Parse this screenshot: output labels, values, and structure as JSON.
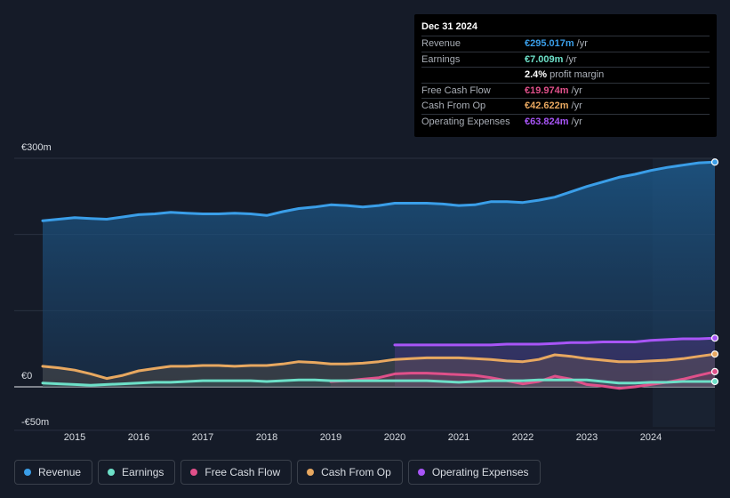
{
  "tooltip": {
    "date": "Dec 31 2024",
    "rows": [
      {
        "label": "Revenue",
        "value": "€295.017m",
        "unit": "/yr",
        "color": "#3a9ee8"
      },
      {
        "label": "Earnings",
        "value": "€7.009m",
        "unit": "/yr",
        "color": "#6de0c8"
      },
      {
        "label": "",
        "value": "2.4%",
        "unit": "profit margin",
        "color": "#ffffff"
      },
      {
        "label": "Free Cash Flow",
        "value": "€19.974m",
        "unit": "/yr",
        "color": "#e0508a"
      },
      {
        "label": "Cash From Op",
        "value": "€42.622m",
        "unit": "/yr",
        "color": "#e8a860"
      },
      {
        "label": "Operating Expenses",
        "value": "€63.824m",
        "unit": "/yr",
        "color": "#a855f7"
      }
    ]
  },
  "legend": [
    {
      "label": "Revenue",
      "color": "#3a9ee8"
    },
    {
      "label": "Earnings",
      "color": "#6de0c8"
    },
    {
      "label": "Free Cash Flow",
      "color": "#e0508a"
    },
    {
      "label": "Cash From Op",
      "color": "#e8a860"
    },
    {
      "label": "Operating Expenses",
      "color": "#a855f7"
    }
  ],
  "chart_data": {
    "type": "area",
    "title": "",
    "xlabel": "",
    "ylabel": "",
    "ylim": [
      -50,
      300
    ],
    "y_tick_labels": [
      "€300m",
      "€0",
      "-€50m"
    ],
    "x_tick_labels": [
      "2015",
      "2016",
      "2017",
      "2018",
      "2019",
      "2020",
      "2021",
      "2022",
      "2023",
      "2024"
    ],
    "x_range": [
      2014.5,
      2025.0
    ],
    "series": [
      {
        "name": "Revenue",
        "color": "#3a9ee8",
        "points": [
          [
            2014.5,
            218
          ],
          [
            2014.75,
            220
          ],
          [
            2015.0,
            222
          ],
          [
            2015.25,
            221
          ],
          [
            2015.5,
            220
          ],
          [
            2015.75,
            223
          ],
          [
            2016.0,
            226
          ],
          [
            2016.25,
            227
          ],
          [
            2016.5,
            229
          ],
          [
            2016.75,
            228
          ],
          [
            2017.0,
            227
          ],
          [
            2017.25,
            227
          ],
          [
            2017.5,
            228
          ],
          [
            2017.75,
            227
          ],
          [
            2018.0,
            225
          ],
          [
            2018.25,
            230
          ],
          [
            2018.5,
            234
          ],
          [
            2018.75,
            236
          ],
          [
            2019.0,
            239
          ],
          [
            2019.25,
            238
          ],
          [
            2019.5,
            236
          ],
          [
            2019.75,
            238
          ],
          [
            2020.0,
            241
          ],
          [
            2020.25,
            241
          ],
          [
            2020.5,
            241
          ],
          [
            2020.75,
            240
          ],
          [
            2021.0,
            238
          ],
          [
            2021.25,
            239
          ],
          [
            2021.5,
            243
          ],
          [
            2021.75,
            243
          ],
          [
            2022.0,
            242
          ],
          [
            2022.25,
            245
          ],
          [
            2022.5,
            249
          ],
          [
            2022.75,
            256
          ],
          [
            2023.0,
            263
          ],
          [
            2023.25,
            269
          ],
          [
            2023.5,
            275
          ],
          [
            2023.75,
            279
          ],
          [
            2024.0,
            284
          ],
          [
            2024.25,
            288
          ],
          [
            2024.5,
            291
          ],
          [
            2024.75,
            294
          ],
          [
            2025.0,
            295
          ]
        ]
      },
      {
        "name": "Earnings",
        "color": "#6de0c8",
        "points": [
          [
            2014.5,
            5
          ],
          [
            2014.75,
            4
          ],
          [
            2015.0,
            3
          ],
          [
            2015.25,
            2
          ],
          [
            2015.5,
            3
          ],
          [
            2015.75,
            4
          ],
          [
            2016.0,
            5
          ],
          [
            2016.25,
            6
          ],
          [
            2016.5,
            6
          ],
          [
            2016.75,
            7
          ],
          [
            2017.0,
            8
          ],
          [
            2017.25,
            8
          ],
          [
            2017.5,
            8
          ],
          [
            2017.75,
            8
          ],
          [
            2018.0,
            7
          ],
          [
            2018.25,
            8
          ],
          [
            2018.5,
            9
          ],
          [
            2018.75,
            9
          ],
          [
            2019.0,
            8
          ],
          [
            2019.25,
            8
          ],
          [
            2019.5,
            8
          ],
          [
            2019.75,
            8
          ],
          [
            2020.0,
            8
          ],
          [
            2020.25,
            8
          ],
          [
            2020.5,
            8
          ],
          [
            2020.75,
            7
          ],
          [
            2021.0,
            6
          ],
          [
            2021.25,
            7
          ],
          [
            2021.5,
            8
          ],
          [
            2021.75,
            8
          ],
          [
            2022.0,
            8
          ],
          [
            2022.25,
            9
          ],
          [
            2022.5,
            9
          ],
          [
            2022.75,
            9
          ],
          [
            2023.0,
            9
          ],
          [
            2023.25,
            7
          ],
          [
            2023.5,
            5
          ],
          [
            2023.75,
            5
          ],
          [
            2024.0,
            6
          ],
          [
            2024.25,
            6
          ],
          [
            2024.5,
            7
          ],
          [
            2024.75,
            7
          ],
          [
            2025.0,
            7
          ]
        ]
      },
      {
        "name": "Free Cash Flow",
        "color": "#e0508a",
        "points": [
          [
            2019.0,
            7
          ],
          [
            2019.25,
            8
          ],
          [
            2019.5,
            10
          ],
          [
            2019.75,
            12
          ],
          [
            2020.0,
            17
          ],
          [
            2020.25,
            18
          ],
          [
            2020.5,
            18
          ],
          [
            2020.75,
            17
          ],
          [
            2021.0,
            16
          ],
          [
            2021.25,
            15
          ],
          [
            2021.5,
            12
          ],
          [
            2021.75,
            8
          ],
          [
            2022.0,
            4
          ],
          [
            2022.25,
            7
          ],
          [
            2022.5,
            14
          ],
          [
            2022.75,
            10
          ],
          [
            2023.0,
            3
          ],
          [
            2023.25,
            1
          ],
          [
            2023.5,
            -2
          ],
          [
            2023.75,
            0
          ],
          [
            2024.0,
            3
          ],
          [
            2024.25,
            6
          ],
          [
            2024.5,
            10
          ],
          [
            2024.75,
            15
          ],
          [
            2025.0,
            20
          ]
        ]
      },
      {
        "name": "Cash From Op",
        "color": "#e8a860",
        "points": [
          [
            2014.5,
            27
          ],
          [
            2014.75,
            25
          ],
          [
            2015.0,
            22
          ],
          [
            2015.25,
            17
          ],
          [
            2015.5,
            11
          ],
          [
            2015.75,
            15
          ],
          [
            2016.0,
            21
          ],
          [
            2016.25,
            24
          ],
          [
            2016.5,
            27
          ],
          [
            2016.75,
            27
          ],
          [
            2017.0,
            28
          ],
          [
            2017.25,
            28
          ],
          [
            2017.5,
            27
          ],
          [
            2017.75,
            28
          ],
          [
            2018.0,
            28
          ],
          [
            2018.25,
            30
          ],
          [
            2018.5,
            33
          ],
          [
            2018.75,
            32
          ],
          [
            2019.0,
            30
          ],
          [
            2019.25,
            30
          ],
          [
            2019.5,
            31
          ],
          [
            2019.75,
            33
          ],
          [
            2020.0,
            36
          ],
          [
            2020.25,
            37
          ],
          [
            2020.5,
            38
          ],
          [
            2020.75,
            38
          ],
          [
            2021.0,
            38
          ],
          [
            2021.25,
            37
          ],
          [
            2021.5,
            36
          ],
          [
            2021.75,
            34
          ],
          [
            2022.0,
            33
          ],
          [
            2022.25,
            36
          ],
          [
            2022.5,
            42
          ],
          [
            2022.75,
            40
          ],
          [
            2023.0,
            37
          ],
          [
            2023.25,
            35
          ],
          [
            2023.5,
            33
          ],
          [
            2023.75,
            33
          ],
          [
            2024.0,
            34
          ],
          [
            2024.25,
            35
          ],
          [
            2024.5,
            37
          ],
          [
            2024.75,
            40
          ],
          [
            2025.0,
            43
          ]
        ]
      },
      {
        "name": "Operating Expenses",
        "color": "#a855f7",
        "points": [
          [
            2020.0,
            55
          ],
          [
            2020.25,
            55
          ],
          [
            2020.5,
            55
          ],
          [
            2020.75,
            55
          ],
          [
            2021.0,
            55
          ],
          [
            2021.25,
            55
          ],
          [
            2021.5,
            55
          ],
          [
            2021.75,
            56
          ],
          [
            2022.0,
            56
          ],
          [
            2022.25,
            56
          ],
          [
            2022.5,
            57
          ],
          [
            2022.75,
            58
          ],
          [
            2023.0,
            58
          ],
          [
            2023.25,
            59
          ],
          [
            2023.5,
            59
          ],
          [
            2023.75,
            59
          ],
          [
            2024.0,
            61
          ],
          [
            2024.25,
            62
          ],
          [
            2024.5,
            63
          ],
          [
            2024.75,
            63
          ],
          [
            2025.0,
            64
          ]
        ]
      }
    ]
  }
}
